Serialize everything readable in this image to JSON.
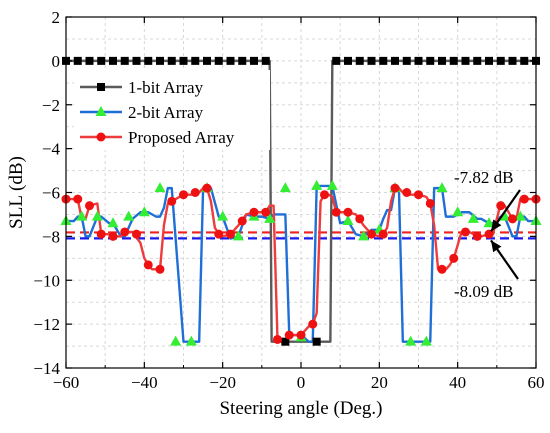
{
  "chart_data": {
    "type": "line",
    "xlabel": "Steering angle (Deg.)",
    "ylabel": "SLL (dB)",
    "xlim": [
      -60,
      60
    ],
    "ylim": [
      -14,
      2
    ],
    "xticks": [
      -60,
      -40,
      -20,
      0,
      20,
      40,
      60
    ],
    "yticks": [
      2,
      0,
      -2,
      -4,
      -6,
      -8,
      -10,
      -12,
      -14
    ],
    "grid": true,
    "legend_position": "top-left",
    "series": [
      {
        "name": "1-bit Array",
        "color": "#5a5a5a",
        "marker": "square",
        "marker_color": "#000000",
        "x": [
          -60,
          -57,
          -54,
          -51,
          -48,
          -45,
          -42,
          -39,
          -36,
          -33,
          -30,
          -27,
          -24,
          -21,
          -18,
          -15,
          -12,
          -9,
          -8,
          -7.5,
          -4,
          -3,
          0,
          3,
          4,
          7.5,
          8,
          9,
          12,
          15,
          18,
          21,
          24,
          27,
          30,
          33,
          36,
          39,
          42,
          45,
          48,
          51,
          54,
          57,
          60
        ],
        "y": [
          0,
          0,
          0,
          0,
          0,
          0,
          0,
          0,
          0,
          0,
          0,
          0,
          0,
          0,
          0,
          0,
          0,
          0,
          0,
          -12.8,
          -12.8,
          -12.8,
          -12.8,
          -12.8,
          -12.8,
          -12.8,
          0,
          0,
          0,
          0,
          0,
          0,
          0,
          0,
          0,
          0,
          0,
          0,
          0,
          0,
          0,
          0,
          0,
          0,
          0
        ],
        "marker_x": [
          -60,
          -57,
          -54,
          -51,
          -48,
          -45,
          -42,
          -39,
          -36,
          -33,
          -30,
          -27,
          -24,
          -21,
          -18,
          -15,
          -12,
          -9,
          -4,
          4,
          9,
          12,
          15,
          18,
          21,
          24,
          27,
          30,
          33,
          36,
          39,
          42,
          45,
          48,
          51,
          54,
          57,
          60
        ],
        "marker_y": [
          0,
          0,
          0,
          0,
          0,
          0,
          0,
          0,
          0,
          0,
          0,
          0,
          0,
          0,
          0,
          0,
          0,
          0,
          -12.8,
          -12.8,
          0,
          0,
          0,
          0,
          0,
          0,
          0,
          0,
          0,
          0,
          0,
          0,
          0,
          0,
          0,
          0,
          0,
          0
        ]
      },
      {
        "name": "2-bit Array",
        "color": "#1f6fd6",
        "marker": "triangle",
        "marker_color": "#33ee33",
        "x": [
          -60,
          -58,
          -57,
          -56,
          -55,
          -54,
          -52,
          -51,
          -49,
          -48,
          -46,
          -45,
          -43,
          -41,
          -39,
          -37,
          -36,
          -35,
          -34,
          -33,
          -30,
          -29,
          -27,
          -26,
          -25,
          -23,
          -21,
          -20,
          -18,
          -16,
          -14,
          -12,
          -10,
          -8,
          -7,
          -6,
          -5,
          -4,
          -3,
          -2,
          0,
          2,
          3,
          4,
          5,
          6,
          7,
          8,
          10,
          12,
          14,
          16,
          18,
          20,
          21,
          22,
          23,
          24,
          25,
          26,
          27,
          29,
          30,
          32,
          33,
          34,
          35,
          36,
          37,
          39,
          41,
          43,
          45,
          46,
          48,
          49,
          51,
          52,
          54,
          55,
          56,
          57,
          58,
          60
        ],
        "y": [
          -7.3,
          -7.3,
          -7.1,
          -7.1,
          -8.0,
          -8.0,
          -7.1,
          -7.1,
          -7.4,
          -7.4,
          -8.0,
          -8.0,
          -7.2,
          -6.9,
          -6.9,
          -7.1,
          -7.1,
          -6.7,
          -5.8,
          -5.8,
          -12.8,
          -12.8,
          -12.8,
          -12.8,
          -5.8,
          -5.8,
          -7.1,
          -7.1,
          -8.1,
          -8.0,
          -7.0,
          -7.1,
          -7.1,
          -7.2,
          -7.0,
          -7.0,
          -7.0,
          -7.0,
          -12.5,
          -12.5,
          -12.5,
          -12.8,
          -12.8,
          -5.7,
          -5.7,
          -5.7,
          -5.7,
          -5.7,
          -7.4,
          -7.3,
          -7.9,
          -8.0,
          -7.7,
          -7.7,
          -7.2,
          -6.8,
          -6.8,
          -5.8,
          -5.8,
          -12.8,
          -12.8,
          -12.8,
          -12.8,
          -12.8,
          -12.8,
          -5.8,
          -5.8,
          -5.8,
          -7.1,
          -7.1,
          -6.9,
          -6.9,
          -7.2,
          -7.2,
          -7.4,
          -7.4,
          -7.1,
          -7.1,
          -8.0,
          -8.0,
          -7.1,
          -7.1,
          -7.3,
          -7.3
        ],
        "marker_x": [
          -60,
          -56,
          -52,
          -48,
          -44,
          -40,
          -36,
          -32,
          -28,
          -24,
          -20,
          -16,
          -12,
          -8,
          -4,
          0,
          4,
          8,
          12,
          16,
          20,
          24,
          28,
          32,
          36,
          40,
          44,
          48,
          52,
          56,
          60
        ],
        "marker_y": [
          -7.3,
          -7.1,
          -7.1,
          -7.4,
          -7.1,
          -6.9,
          -5.8,
          -12.8,
          -12.8,
          -5.8,
          -7.1,
          -8.0,
          -7.1,
          -7.2,
          -5.8,
          -12.6,
          -5.7,
          -5.7,
          -7.3,
          -8.0,
          -7.7,
          -5.8,
          -12.8,
          -12.8,
          -5.8,
          -6.9,
          -7.2,
          -7.4,
          -7.1,
          -7.1,
          -7.3
        ]
      },
      {
        "name": "Proposed Array",
        "color": "#ee3b3b",
        "marker": "circle",
        "marker_color": "#ee1111",
        "x": [
          -60,
          -58,
          -57,
          -56,
          -55,
          -54,
          -52,
          -51,
          -49,
          -48,
          -46,
          -45,
          -43,
          -41,
          -40,
          -39,
          -38,
          -37,
          -36,
          -35,
          -34,
          -33,
          -32,
          -30,
          -28,
          -27,
          -26,
          -25,
          -24,
          -23,
          -22,
          -21,
          -20,
          -18,
          -16,
          -14,
          -12,
          -10,
          -9,
          -8,
          -7,
          -6,
          -5,
          -4,
          -3,
          -2,
          0,
          2,
          3,
          4,
          5,
          6,
          7,
          8,
          9,
          10,
          12,
          14,
          16,
          18,
          20,
          21,
          22,
          23,
          24,
          25,
          26,
          27,
          28,
          29,
          30,
          32,
          33,
          34,
          35,
          36,
          37,
          38,
          39,
          40,
          41,
          43,
          45,
          46,
          48,
          49,
          51,
          52,
          54,
          55,
          56,
          57,
          58,
          60
        ],
        "y": [
          -6.3,
          -6.3,
          -6.3,
          -7.2,
          -7.2,
          -6.6,
          -6.5,
          -7.9,
          -7.9,
          -8.0,
          -8.0,
          -7.8,
          -7.8,
          -8.3,
          -9.0,
          -9.3,
          -9.5,
          -9.5,
          -9.5,
          -7.5,
          -6.5,
          -6.4,
          -6.3,
          -6.1,
          -6.1,
          -6.0,
          -6.0,
          -5.8,
          -5.8,
          -6.4,
          -7.6,
          -7.9,
          -8.0,
          -7.9,
          -7.5,
          -7.0,
          -6.9,
          -6.9,
          -6.9,
          -6.6,
          -6.6,
          -12.7,
          -12.8,
          -12.8,
          -12.5,
          -12.5,
          -12.5,
          -12.1,
          -12.0,
          -11.5,
          -6.4,
          -6.1,
          -6.1,
          -6.2,
          -6.9,
          -6.9,
          -6.9,
          -7.0,
          -7.5,
          -7.9,
          -8.0,
          -7.9,
          -7.6,
          -6.4,
          -5.8,
          -5.8,
          -6.0,
          -6.0,
          -6.1,
          -6.1,
          -6.1,
          -6.2,
          -6.5,
          -7.5,
          -9.5,
          -9.5,
          -9.5,
          -9.3,
          -9.0,
          -8.4,
          -7.8,
          -7.8,
          -8.0,
          -8.0,
          -7.9,
          -7.9,
          -6.5,
          -6.6,
          -7.2,
          -7.2,
          -6.3,
          -6.3,
          -6.3,
          -6.3
        ],
        "marker_x": [
          -60,
          -57,
          -54,
          -51,
          -48,
          -45,
          -42,
          -39,
          -36,
          -33,
          -30,
          -27,
          -24,
          -21,
          -18,
          -15,
          -12,
          -9,
          -6,
          -3,
          0,
          3,
          6,
          9,
          12,
          15,
          18,
          21,
          24,
          27,
          30,
          33,
          36,
          39,
          42,
          45,
          48,
          51,
          54,
          57,
          60
        ],
        "marker_y": [
          -6.3,
          -6.3,
          -6.6,
          -7.9,
          -8.0,
          -7.8,
          -7.9,
          -9.3,
          -9.5,
          -6.4,
          -6.1,
          -6.0,
          -5.8,
          -7.9,
          -7.9,
          -7.3,
          -6.9,
          -6.9,
          -12.7,
          -12.5,
          -12.5,
          -12.0,
          -6.1,
          -6.9,
          -6.9,
          -7.2,
          -7.9,
          -7.9,
          -5.8,
          -6.0,
          -6.1,
          -6.5,
          -9.5,
          -9.0,
          -7.8,
          -8.0,
          -7.9,
          -6.6,
          -7.2,
          -6.3,
          -6.3
        ]
      }
    ],
    "reference_lines": [
      {
        "y": -7.82,
        "color": "#ee2222",
        "style": "dashed"
      },
      {
        "y": -8.09,
        "color": "#1a1aee",
        "style": "dashed"
      }
    ],
    "annotations": [
      {
        "text": "-7.82 dB",
        "arrow_to_x": 48,
        "arrow_to_y": -7.82
      },
      {
        "text": "-8.09 dB",
        "arrow_to_x": 48,
        "arrow_to_y": -8.09
      }
    ]
  }
}
